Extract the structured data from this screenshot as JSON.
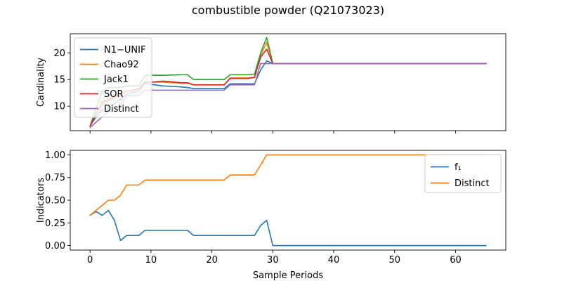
{
  "title": "combustible powder (Q21073023)",
  "chart_data": [
    {
      "type": "line",
      "ylabel": "Cardinality",
      "xlabel": "",
      "xlim": [
        -3.25,
        68.25
      ],
      "ylim": [
        5.4,
        23.6
      ],
      "xticks": [
        0,
        10,
        20,
        30,
        40,
        50,
        60
      ],
      "yticks": [
        10,
        15,
        20
      ],
      "show_x_tick_labels": false,
      "legend_position": "upper-left",
      "series": [
        {
          "name": "N1−UNIF",
          "color": "#1f77b4",
          "x": [
            0,
            1,
            2,
            3,
            4,
            5,
            6,
            7,
            8,
            9,
            10,
            12,
            15,
            16,
            17,
            20,
            22,
            23,
            26,
            27,
            28,
            29,
            30,
            40,
            50,
            60,
            65
          ],
          "y": [
            6.3,
            8.0,
            9.3,
            9.8,
            10.5,
            11.2,
            12.3,
            12.6,
            12.8,
            14.3,
            14.1,
            13.8,
            13.6,
            13.5,
            13.3,
            13.3,
            13.3,
            14.2,
            14.2,
            14.2,
            16.8,
            18.5,
            18.0,
            18.0,
            18.0,
            18.0,
            18.0
          ]
        },
        {
          "name": "Chao92",
          "color": "#ff7f0e",
          "x": [
            0,
            1,
            2,
            3,
            4,
            5,
            6,
            7,
            8,
            9,
            10,
            12,
            15,
            16,
            17,
            20,
            22,
            23,
            26,
            27,
            28,
            29,
            30,
            40,
            50,
            60,
            65
          ],
          "y": [
            6.3,
            8.5,
            10.3,
            11.0,
            11.5,
            12.0,
            12.8,
            13.0,
            13.2,
            14.6,
            14.5,
            14.5,
            14.3,
            14.3,
            14.0,
            14.0,
            14.0,
            15.3,
            15.3,
            15.4,
            19.5,
            22.0,
            18.0,
            18.0,
            18.0,
            18.0,
            18.0
          ]
        },
        {
          "name": "Jack1",
          "color": "#2ca02c",
          "x": [
            0,
            1,
            2,
            3,
            4,
            5,
            6,
            7,
            8,
            9,
            10,
            12,
            15,
            16,
            17,
            20,
            22,
            23,
            26,
            27,
            28,
            29,
            30,
            40,
            50,
            60,
            65
          ],
          "y": [
            6.3,
            9.5,
            12.8,
            13.5,
            13.5,
            13.5,
            13.8,
            13.8,
            13.8,
            15.7,
            15.8,
            15.8,
            15.9,
            15.9,
            15.0,
            15.0,
            15.0,
            15.9,
            15.9,
            16.0,
            20.0,
            22.9,
            18.0,
            18.0,
            18.0,
            18.0,
            18.0
          ]
        },
        {
          "name": "SOR",
          "color": "#d62728",
          "x": [
            0,
            1,
            2,
            3,
            4,
            5,
            6,
            7,
            8,
            9,
            10,
            12,
            15,
            16,
            17,
            20,
            22,
            23,
            26,
            27,
            28,
            29,
            30,
            40,
            50,
            60,
            65
          ],
          "y": [
            6.3,
            8.5,
            10.8,
            11.2,
            11.8,
            12.3,
            12.8,
            13.0,
            13.3,
            14.5,
            14.5,
            14.7,
            14.4,
            14.4,
            14.0,
            14.0,
            14.0,
            15.2,
            15.2,
            15.4,
            19.2,
            20.7,
            18.0,
            18.0,
            18.0,
            18.0,
            18.0
          ]
        },
        {
          "name": "Distinct",
          "color": "#9467bd",
          "x": [
            0,
            1,
            2,
            3,
            4,
            5,
            6,
            7,
            8,
            9,
            10,
            12,
            15,
            16,
            17,
            20,
            22,
            23,
            26,
            27,
            28,
            29,
            30,
            40,
            50,
            60,
            65
          ],
          "y": [
            6.0,
            7.0,
            8.0,
            9.0,
            9.0,
            10.0,
            12.0,
            12.0,
            12.0,
            13.0,
            13.0,
            13.0,
            13.0,
            13.0,
            13.0,
            13.0,
            13.0,
            14.0,
            14.0,
            14.0,
            18.0,
            18.0,
            18.0,
            18.0,
            18.0,
            18.0,
            18.0
          ]
        }
      ]
    },
    {
      "type": "line",
      "ylabel": "Indicators",
      "xlabel": "Sample Periods",
      "xlim": [
        -3.25,
        68.25
      ],
      "ylim": [
        -0.05,
        1.05
      ],
      "xticks": [
        0,
        10,
        20,
        30,
        40,
        50,
        60
      ],
      "yticks": [
        0.0,
        0.25,
        0.5,
        0.75,
        1.0
      ],
      "ytick_labels": [
        "0.00",
        "0.25",
        "0.50",
        "0.75",
        "1.00"
      ],
      "show_x_tick_labels": true,
      "legend_position": "upper-right",
      "series": [
        {
          "name": "f₁",
          "color": "#1f77b4",
          "x": [
            0,
            1,
            2,
            3,
            4,
            5,
            6,
            7,
            8,
            9,
            10,
            15,
            16,
            17,
            20,
            22,
            23,
            26,
            27,
            28,
            29,
            30,
            40,
            50,
            60,
            65
          ],
          "y": [
            0.333,
            0.375,
            0.333,
            0.389,
            0.278,
            0.056,
            0.111,
            0.111,
            0.111,
            0.167,
            0.167,
            0.167,
            0.167,
            0.111,
            0.111,
            0.111,
            0.111,
            0.111,
            0.111,
            0.222,
            0.278,
            0.0,
            0.0,
            0.0,
            0.0,
            0.0
          ]
        },
        {
          "name": "Distinct",
          "color": "#ff7f0e",
          "x": [
            0,
            1,
            2,
            3,
            4,
            5,
            6,
            7,
            8,
            9,
            10,
            15,
            16,
            17,
            20,
            22,
            23,
            26,
            27,
            28,
            29,
            30,
            40,
            50,
            60,
            65
          ],
          "y": [
            0.333,
            0.389,
            0.444,
            0.5,
            0.5,
            0.556,
            0.667,
            0.667,
            0.667,
            0.722,
            0.722,
            0.722,
            0.722,
            0.722,
            0.722,
            0.722,
            0.778,
            0.778,
            0.778,
            0.889,
            1.0,
            1.0,
            1.0,
            1.0,
            1.0,
            1.0
          ]
        }
      ]
    }
  ]
}
